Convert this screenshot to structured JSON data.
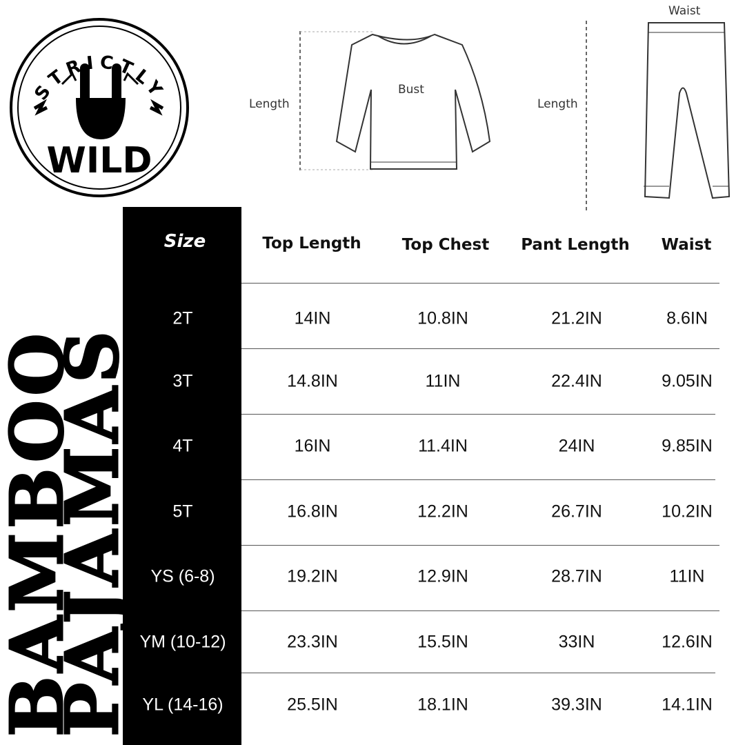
{
  "logo": {
    "top_text": "STRICTLY",
    "bottom_text": "WILD"
  },
  "diagram": {
    "top": {
      "length_label": "Length",
      "bust_label": "Bust"
    },
    "pants": {
      "length_label": "Length",
      "waist_label": "Waist"
    }
  },
  "side_title": {
    "line1": "BAMBOO",
    "line2": "PAJAMAS"
  },
  "table": {
    "headers": [
      "Size",
      "Top Length",
      "Top Chest",
      "Pant Length",
      "Waist"
    ],
    "rows": [
      [
        "2T",
        "14IN",
        "10.8IN",
        "21.2IN",
        "8.6IN"
      ],
      [
        "3T",
        "14.8IN",
        "11IN",
        "22.4IN",
        "9.05IN"
      ],
      [
        "4T",
        "16IN",
        "11.4IN",
        "24IN",
        "9.85IN"
      ],
      [
        "5T",
        "16.8IN",
        "12.2IN",
        "26.7IN",
        "10.2IN"
      ],
      [
        "YS (6-8)",
        "19.2IN",
        "12.9IN",
        "28.7IN",
        "11IN"
      ],
      [
        "YM (10-12)",
        "23.3IN",
        "15.5IN",
        "33IN",
        "12.6IN"
      ],
      [
        "YL (14-16)",
        "25.5IN",
        "18.1IN",
        "39.3IN",
        "14.1IN"
      ]
    ]
  }
}
